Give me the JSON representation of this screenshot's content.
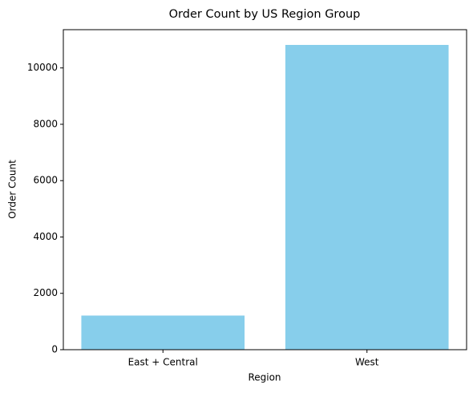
{
  "chart_data": {
    "type": "bar",
    "title": "Order Count by US Region Group",
    "x_label": "Region",
    "y_label": "Order Count",
    "categories": [
      "East + Central",
      "West"
    ],
    "values": [
      1211,
      10817
    ],
    "color": "#87ceeb",
    "ylim": [
      0,
      11358
    ],
    "yticks": [
      0,
      2000,
      4000,
      6000,
      8000,
      10000
    ],
    "grid": false
  }
}
